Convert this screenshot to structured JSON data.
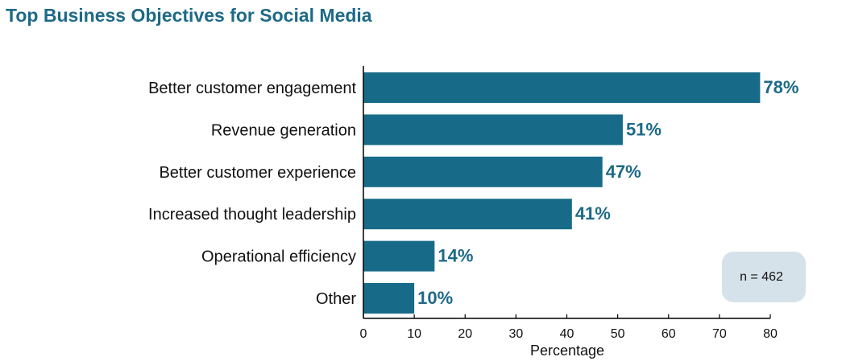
{
  "chart_data": {
    "type": "bar",
    "orientation": "horizontal",
    "title": "Top Business Objectives for Social Media",
    "categories": [
      "Better customer engagement",
      "Revenue generation",
      "Better customer experience",
      "Increased thought leadership",
      "Operational efficiency",
      "Other"
    ],
    "values": [
      78,
      51,
      47,
      41,
      14,
      10
    ],
    "value_labels": [
      "78%",
      "51%",
      "47%",
      "41%",
      "14%",
      "10%"
    ],
    "xlabel": "Percentage",
    "ylabel": "",
    "xlim": [
      0,
      80
    ],
    "xticks": [
      0,
      10,
      20,
      30,
      40,
      50,
      60,
      70,
      80
    ],
    "annotation": "n = 462",
    "bar_color": "#186b88",
    "label_color": "#1d6a87",
    "annotation_bg": "#d6e2ea",
    "grid": false,
    "legend": "none"
  }
}
